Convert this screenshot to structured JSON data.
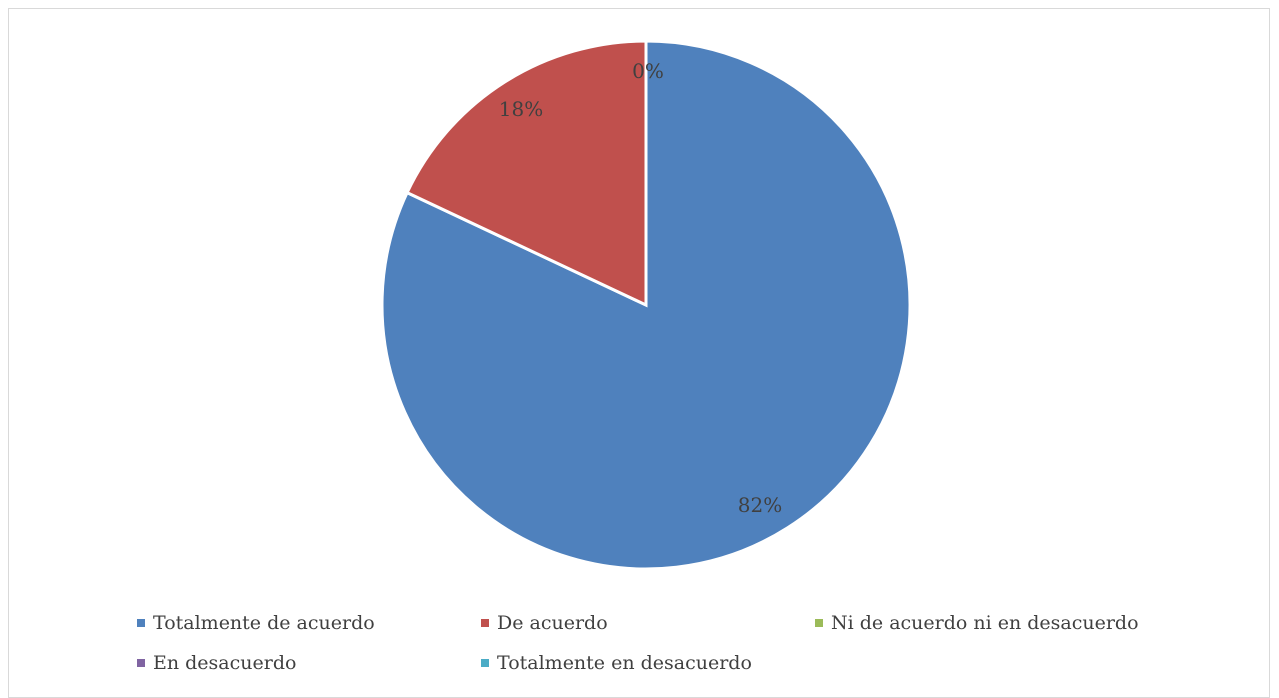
{
  "chart_data": {
    "type": "pie",
    "start_angle_deg": 0,
    "direction": "clockwise",
    "categories": [
      "Totalmente de acuerdo",
      "De acuerdo",
      "Ni de acuerdo ni en desacuerdo",
      "En desacuerdo",
      "Totalmente en desacuerdo"
    ],
    "values": [
      82,
      18,
      0,
      0,
      0
    ],
    "data_labels": [
      "82%",
      "18%",
      "0%",
      "",
      ""
    ],
    "colors": [
      "#4f81bd",
      "#c0504d",
      "#9bbb59",
      "#8064a2",
      "#4bacc6"
    ],
    "legend_position": "bottom"
  }
}
